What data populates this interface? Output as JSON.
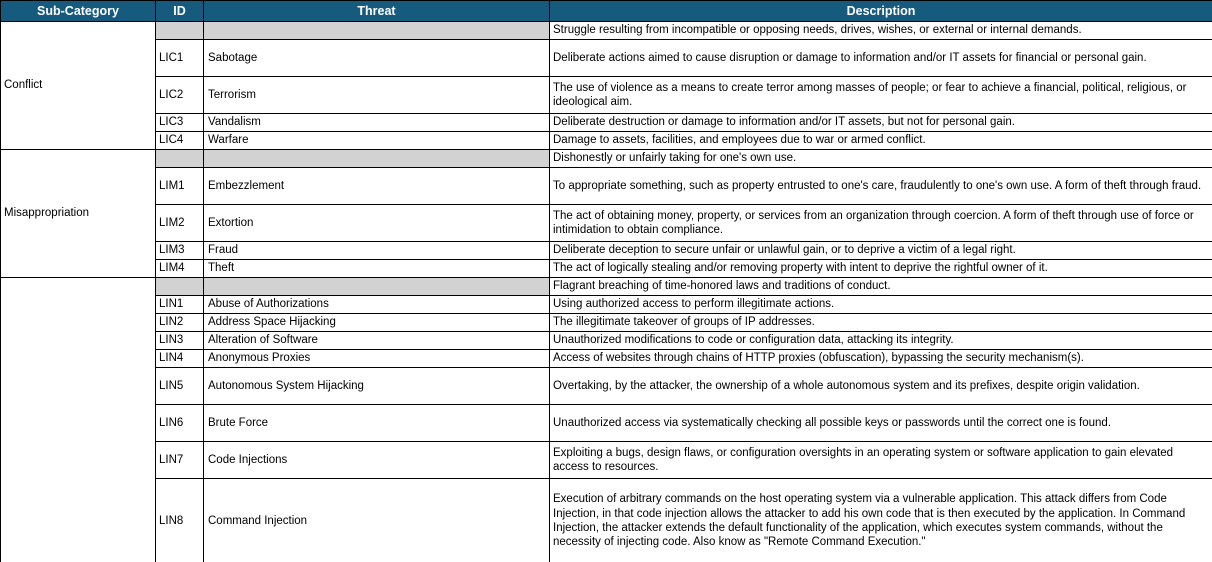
{
  "colors": {
    "header_bg": "#165A7D",
    "header_text": "#FFFFFF",
    "summary_row_bg": "#D2D2D2",
    "grid_border": "#000000"
  },
  "table": {
    "columns": [
      "Sub-Category",
      "ID",
      "Threat",
      "Description"
    ],
    "groups": [
      {
        "sub_category": "Conflict",
        "summary": "Struggle resulting from incompatible or opposing needs, drives, wishes, or external or internal demands.",
        "rows": [
          {
            "id": "LIC1",
            "threat": "Sabotage",
            "description": "Deliberate actions aimed to cause disruption or damage to information and/or IT assets for financial or personal gain."
          },
          {
            "id": "LIC2",
            "threat": "Terrorism",
            "description": "The use of violence as a means to create terror among masses of people; or fear to achieve a financial, political, religious, or ideological aim."
          },
          {
            "id": "LIC3",
            "threat": "Vandalism",
            "description": "Deliberate destruction or damage to information and/or IT assets, but not for personal gain."
          },
          {
            "id": "LIC4",
            "threat": "Warfare",
            "description": "Damage to assets, facilities, and employees due to war or armed conflict."
          }
        ]
      },
      {
        "sub_category": "Misappropriation",
        "summary": "Dishonestly or unfairly taking for one's own use.",
        "rows": [
          {
            "id": "LIM1",
            "threat": "Embezzlement",
            "description": "To appropriate something, such as property entrusted to one's care, fraudulently to one's own use. A form of theft through fraud."
          },
          {
            "id": "LIM2",
            "threat": "Extortion",
            "description": "The act of obtaining money, property, or services from an organization through coercion. A form of theft through use of force or intimidation to obtain compliance."
          },
          {
            "id": "LIM3",
            "threat": "Fraud",
            "description": "Deliberate deception to secure unfair or unlawful gain, or to deprive a victim of a legal right."
          },
          {
            "id": "LIM4",
            "threat": "Theft",
            "description": "The act of logically stealing and/or removing property with intent to deprive the rightful owner of it."
          }
        ]
      },
      {
        "sub_category": "",
        "summary": "Flagrant breaching of time-honored laws and traditions of conduct.",
        "rows": [
          {
            "id": "LIN1",
            "threat": "Abuse of Authorizations",
            "description": "Using authorized access to perform illegitimate actions."
          },
          {
            "id": "LIN2",
            "threat": "Address Space Hijacking",
            "description": "The illegitimate takeover of groups of IP addresses."
          },
          {
            "id": "LIN3",
            "threat": "Alteration of Software",
            "description": "Unauthorized modifications to code or configuration data, attacking its integrity."
          },
          {
            "id": "LIN4",
            "threat": "Anonymous Proxies",
            "description": "Access of websites through chains of HTTP proxies (obfuscation), bypassing the security mechanism(s)."
          },
          {
            "id": "LIN5",
            "threat": "Autonomous System Hijacking",
            "description": "Overtaking, by the attacker, the ownership of a whole autonomous system and its prefixes, despite origin validation."
          },
          {
            "id": "LIN6",
            "threat": "Brute Force",
            "description": "Unauthorized access via systematically checking all possible keys or passwords until the correct one is found."
          },
          {
            "id": "LIN7",
            "threat": "Code Injections",
            "description": "Exploiting a bugs, design flaws, or configuration oversights in an operating system or software application to gain elevated access to resources."
          },
          {
            "id": "LIN8",
            "threat": "Command Injection",
            "description": "Execution of arbitrary commands on the host operating system via a vulnerable application. This attack differs from Code Injection, in that code injection allows the attacker to add his own code that is then executed by the application. In Command Injection, the attacker extends the default functionality of the application, which executes system commands, without the necessity of injecting code. Also know as \"Remote Command Execution.\""
          }
        ]
      }
    ]
  }
}
